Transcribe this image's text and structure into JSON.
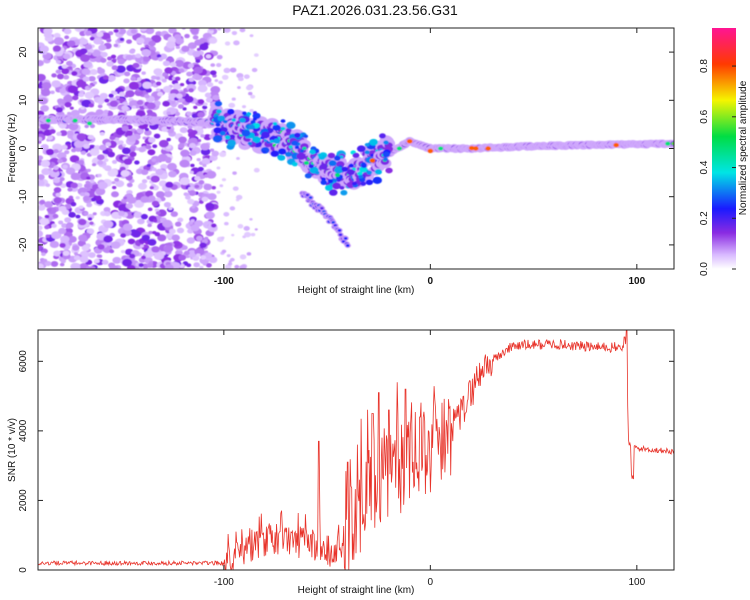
{
  "title": "PAZ1.2026.031.23.56.G31",
  "chart_data": [
    {
      "type": "heatmap",
      "xlabel": "Height of straight line (km)",
      "ylabel": "Frequency (Hz)",
      "xlim": [
        -190,
        118
      ],
      "ylim": [
        -25,
        25
      ],
      "xticks": [
        -100,
        0,
        100
      ],
      "xtick_labels": [
        "-100",
        "0",
        "100"
      ],
      "yticks": [
        -20,
        -10,
        0,
        10,
        20
      ],
      "ytick_labels": [
        "-20",
        "-10",
        "0",
        "10",
        "20"
      ],
      "colorbar": {
        "label": "Normalized spectral amplitude",
        "range": [
          0.0,
          0.95
        ],
        "ticks": [
          0.0,
          0.2,
          0.4,
          0.6,
          0.8
        ],
        "tick_labels": [
          "0.0",
          "0.2",
          "0.4",
          "0.6",
          "0.8"
        ],
        "colormap": "rainbow: white-violet-blue-cyan-green-yellow-red-magenta"
      },
      "ridge": [
        {
          "x": -190,
          "f": 6.0
        },
        {
          "x": -150,
          "f": 6.0
        },
        {
          "x": -110,
          "f": 5.5
        },
        {
          "x": -100,
          "f": 5.0
        },
        {
          "x": -85,
          "f": 3.0
        },
        {
          "x": -70,
          "f": 2.0
        },
        {
          "x": -60,
          "f": -1.5
        },
        {
          "x": -50,
          "f": -5.0
        },
        {
          "x": -40,
          "f": -5.5
        },
        {
          "x": -30,
          "f": -3.0
        },
        {
          "x": -20,
          "f": -1.0
        },
        {
          "x": -10,
          "f": 1.5
        },
        {
          "x": 0,
          "f": 0.0
        },
        {
          "x": 20,
          "f": 0.0
        },
        {
          "x": 50,
          "f": 0.5
        },
        {
          "x": 90,
          "f": 0.8
        },
        {
          "x": 118,
          "f": 1.0
        }
      ],
      "branch": [
        {
          "x": -60,
          "f": -10.0
        },
        {
          "x": -48,
          "f": -15.0
        },
        {
          "x": -40,
          "f": -20.0
        }
      ]
    },
    {
      "type": "line",
      "xlabel": "Height of straight line (km)",
      "ylabel": "SNR (10 * v/v)",
      "xlim": [
        -190,
        118
      ],
      "ylim": [
        0,
        6900
      ],
      "xticks": [
        -100,
        0,
        100
      ],
      "xtick_labels": [
        "-100",
        "0",
        "100"
      ],
      "yticks": [
        0,
        2000,
        4000,
        6000
      ],
      "ytick_labels": [
        "0",
        "2000",
        "4000",
        "6000"
      ],
      "color": "#e8332a",
      "series": [
        {
          "name": "SNR",
          "x": [
            -190,
            -100,
            -95,
            -85,
            -70,
            -60,
            -50,
            -45,
            -35,
            -25,
            -15,
            -5,
            5,
            15,
            25,
            40,
            60,
            80,
            93,
            95,
            96,
            100,
            118
          ],
          "y": [
            200,
            200,
            300,
            800,
            900,
            800,
            600,
            400,
            1800,
            2600,
            3000,
            3300,
            3600,
            4500,
            5800,
            6450,
            6500,
            6400,
            6400,
            6500,
            3600,
            3500,
            3400
          ]
        }
      ]
    }
  ]
}
